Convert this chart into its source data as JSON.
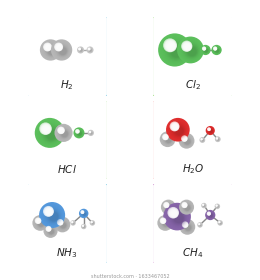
{
  "background": "#ffffff",
  "border_colors": {
    "H2": "#7ec8e3",
    "Cl2": "#90d870",
    "HCl": "#90d870",
    "H2O": "#f07070",
    "NH3": "#7ec8e3",
    "CH4": "#cc88cc"
  },
  "watermark": "shutterstock.com · 1633467052",
  "gray": "#b8b8b8",
  "gray_light": "#cccccc",
  "green_cl": "#5dc05d",
  "red_o": "#e03030",
  "blue_n": "#5599dd",
  "purple_c": "#8866aa",
  "white_h": "#d0d0d0"
}
